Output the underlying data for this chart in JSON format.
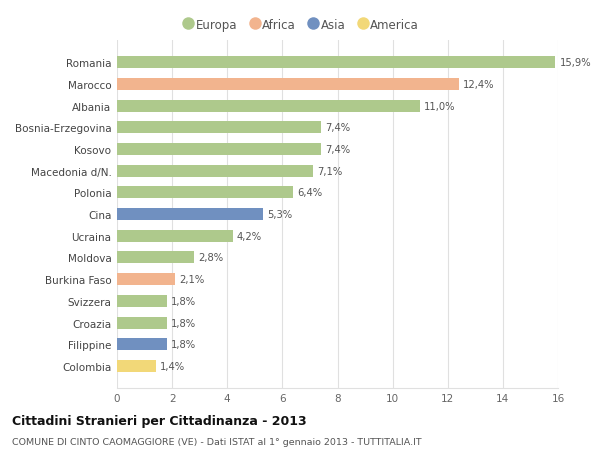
{
  "categories": [
    "Romania",
    "Marocco",
    "Albania",
    "Bosnia-Erzegovina",
    "Kosovo",
    "Macedonia d/N.",
    "Polonia",
    "Cina",
    "Ucraina",
    "Moldova",
    "Burkina Faso",
    "Svizzera",
    "Croazia",
    "Filippine",
    "Colombia"
  ],
  "values": [
    15.9,
    12.4,
    11.0,
    7.4,
    7.4,
    7.1,
    6.4,
    5.3,
    4.2,
    2.8,
    2.1,
    1.8,
    1.8,
    1.8,
    1.4
  ],
  "labels": [
    "15,9%",
    "12,4%",
    "11,0%",
    "7,4%",
    "7,4%",
    "7,1%",
    "6,4%",
    "5,3%",
    "4,2%",
    "2,8%",
    "2,1%",
    "1,8%",
    "1,8%",
    "1,8%",
    "1,4%"
  ],
  "continents": [
    "Europa",
    "Africa",
    "Europa",
    "Europa",
    "Europa",
    "Europa",
    "Europa",
    "Asia",
    "Europa",
    "Europa",
    "Africa",
    "Europa",
    "Europa",
    "Asia",
    "America"
  ],
  "colors": {
    "Europa": "#aec98c",
    "Africa": "#f2b48e",
    "Asia": "#7090c0",
    "America": "#f2d878"
  },
  "legend_order": [
    "Europa",
    "Africa",
    "Asia",
    "America"
  ],
  "title1": "Cittadini Stranieri per Cittadinanza - 2013",
  "title2": "COMUNE DI CINTO CAOMAGGIORE (VE) - Dati ISTAT al 1° gennaio 2013 - TUTTITALIA.IT",
  "xlim": [
    0,
    16
  ],
  "xticks": [
    0,
    2,
    4,
    6,
    8,
    10,
    12,
    14,
    16
  ],
  "bg_color": "#ffffff",
  "plot_bg_color": "#ffffff",
  "grid_color": "#e0e0e0"
}
